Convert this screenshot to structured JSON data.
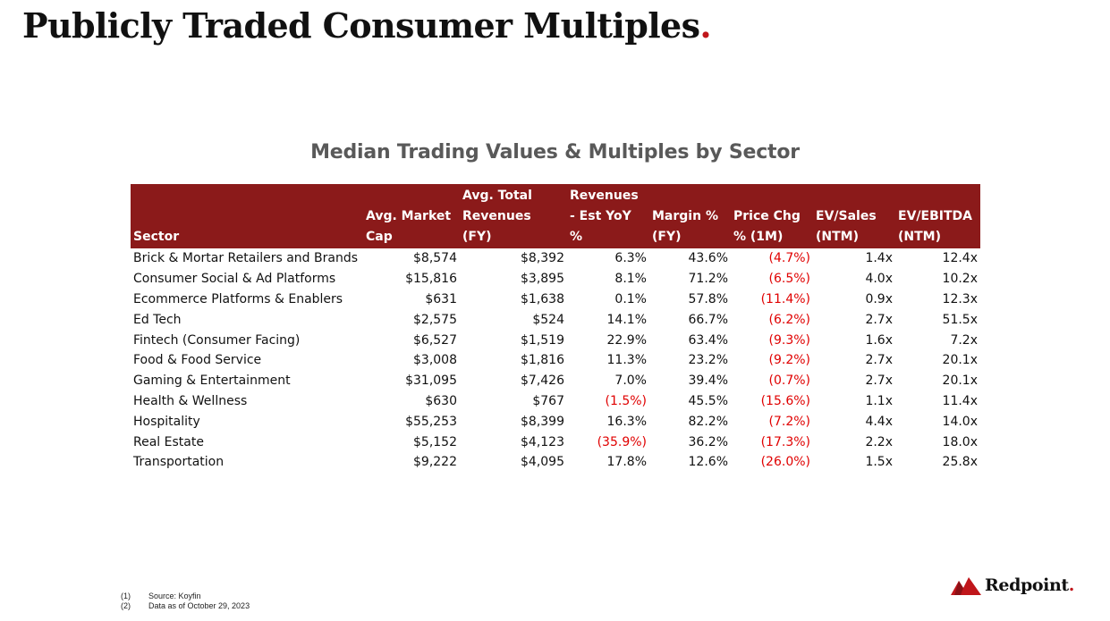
{
  "page": {
    "title": "Publicly Traded Consumer Multiples",
    "title_dot": ".",
    "accent_color": "#c0161b",
    "header_color": "#8b1a1a",
    "negative_color": "#e00000"
  },
  "table": {
    "title": "Median Trading Values & Multiples by Sector",
    "headers": [
      "Sector",
      "Avg. Market Cap",
      "Avg. Total Revenues (FY)",
      "Revenues - Est YoY %",
      "Margin % (FY)",
      "Price Chg % (1M)",
      "EV/Sales (NTM)",
      "EV/EBITDA (NTM)"
    ],
    "rows": [
      {
        "sector": "Brick & Mortar Retailers and Brands",
        "market_cap": "$8,574",
        "revenues": "$8,392",
        "rev_yoy": "6.3%",
        "margin": "43.6%",
        "price_chg": "(4.7%)",
        "ev_sales": "1.4x",
        "ev_ebitda": "12.4x"
      },
      {
        "sector": "Consumer Social & Ad Platforms",
        "market_cap": "$15,816",
        "revenues": "$3,895",
        "rev_yoy": "8.1%",
        "margin": "71.2%",
        "price_chg": "(6.5%)",
        "ev_sales": "4.0x",
        "ev_ebitda": "10.2x"
      },
      {
        "sector": "Ecommerce Platforms & Enablers",
        "market_cap": "$631",
        "revenues": "$1,638",
        "rev_yoy": "0.1%",
        "margin": "57.8%",
        "price_chg": "(11.4%)",
        "ev_sales": "0.9x",
        "ev_ebitda": "12.3x"
      },
      {
        "sector": "Ed Tech",
        "market_cap": "$2,575",
        "revenues": "$524",
        "rev_yoy": "14.1%",
        "margin": "66.7%",
        "price_chg": "(6.2%)",
        "ev_sales": "2.7x",
        "ev_ebitda": "51.5x"
      },
      {
        "sector": "Fintech (Consumer Facing)",
        "market_cap": "$6,527",
        "revenues": "$1,519",
        "rev_yoy": "22.9%",
        "margin": "63.4%",
        "price_chg": "(9.3%)",
        "ev_sales": "1.6x",
        "ev_ebitda": "7.2x"
      },
      {
        "sector": "Food & Food Service",
        "market_cap": "$3,008",
        "revenues": "$1,816",
        "rev_yoy": "11.3%",
        "margin": "23.2%",
        "price_chg": "(9.2%)",
        "ev_sales": "2.7x",
        "ev_ebitda": "20.1x"
      },
      {
        "sector": "Gaming & Entertainment",
        "market_cap": "$31,095",
        "revenues": "$7,426",
        "rev_yoy": "7.0%",
        "margin": "39.4%",
        "price_chg": "(0.7%)",
        "ev_sales": "2.7x",
        "ev_ebitda": "20.1x"
      },
      {
        "sector": "Health & Wellness",
        "market_cap": "$630",
        "revenues": "$767",
        "rev_yoy": "(1.5%)",
        "margin": "45.5%",
        "price_chg": "(15.6%)",
        "ev_sales": "1.1x",
        "ev_ebitda": "11.4x"
      },
      {
        "sector": "Hospitality",
        "market_cap": "$55,253",
        "revenues": "$8,399",
        "rev_yoy": "16.3%",
        "margin": "82.2%",
        "price_chg": "(7.2%)",
        "ev_sales": "4.4x",
        "ev_ebitda": "14.0x"
      },
      {
        "sector": "Real Estate",
        "market_cap": "$5,152",
        "revenues": "$4,123",
        "rev_yoy": "(35.9%)",
        "margin": "36.2%",
        "price_chg": "(17.3%)",
        "ev_sales": "2.2x",
        "ev_ebitda": "18.0x"
      },
      {
        "sector": "Transportation",
        "market_cap": "$9,222",
        "revenues": "$4,095",
        "rev_yoy": "17.8%",
        "margin": "12.6%",
        "price_chg": "(26.0%)",
        "ev_sales": "1.5x",
        "ev_ebitda": "25.8x"
      }
    ]
  },
  "footnotes": [
    {
      "num": "(1)",
      "text": "Source: Koyfin"
    },
    {
      "num": "(2)",
      "text": "Data as of October 29, 2023"
    }
  ],
  "logo": {
    "text": "Redpoint",
    "dot": ".",
    "icon": "redpoint-mountain-icon"
  }
}
